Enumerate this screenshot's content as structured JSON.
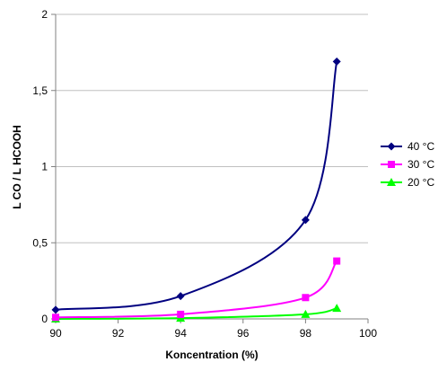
{
  "chart_data": {
    "type": "line",
    "title": "",
    "xlabel": "Koncentration (%)",
    "ylabel": "L CO / L HCOOH",
    "xlim": [
      90,
      100
    ],
    "ylim": [
      0,
      2
    ],
    "x_ticks": [
      "90",
      "92",
      "94",
      "96",
      "98",
      "100"
    ],
    "y_ticks": [
      "0",
      "0,5",
      "1",
      "1,5",
      "2"
    ],
    "grid": "horizontal",
    "legend_position": "right",
    "smooth": true,
    "series": [
      {
        "name": "40 °C",
        "color": "#000080",
        "marker": "diamond",
        "x": [
          90,
          94,
          98,
          99
        ],
        "y": [
          0.06,
          0.15,
          0.65,
          1.69
        ]
      },
      {
        "name": "30 °C",
        "color": "#ff00ff",
        "marker": "square",
        "x": [
          90,
          94,
          98,
          99
        ],
        "y": [
          0.01,
          0.03,
          0.14,
          0.38
        ]
      },
      {
        "name": "20 °C",
        "color": "#00ff00",
        "marker": "triangle",
        "x": [
          90,
          94,
          98,
          99
        ],
        "y": [
          0.0,
          0.005,
          0.03,
          0.07
        ]
      }
    ]
  }
}
